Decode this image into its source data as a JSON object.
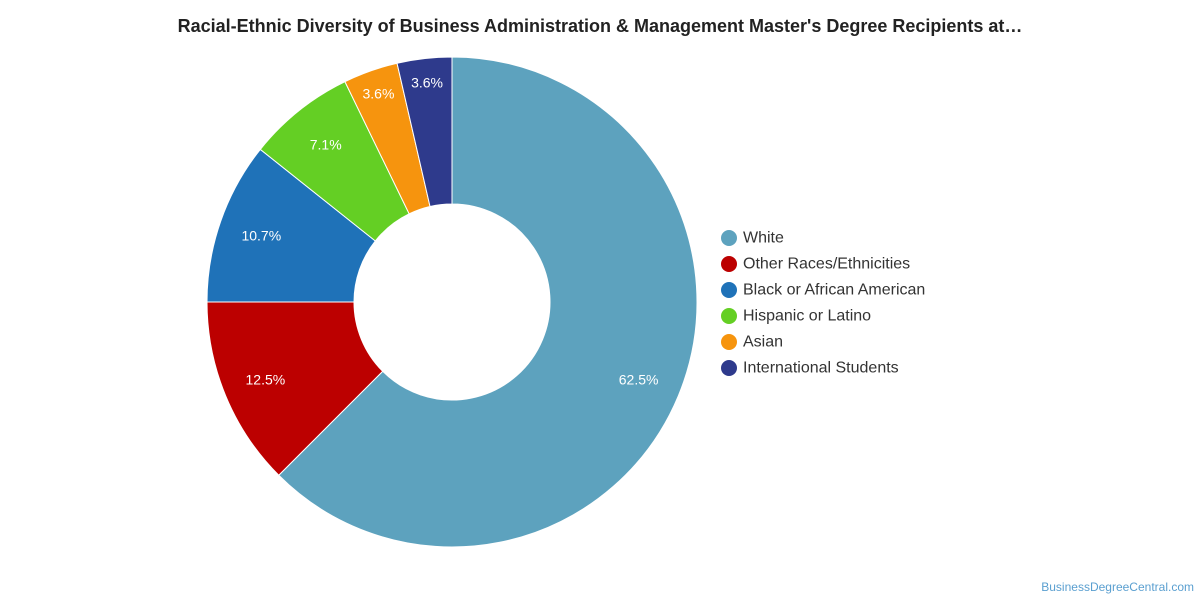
{
  "chart_data": {
    "type": "pie",
    "variant": "donut",
    "title": "Racial-Ethnic Diversity of Business Administration & Management Master's Degree Recipients at…",
    "legend_position": "right",
    "slices": [
      {
        "label": "White",
        "value": 62.5,
        "display": "62.5%",
        "color": "#5da2be"
      },
      {
        "label": "Other Races/Ethnicities",
        "value": 12.5,
        "display": "12.5%",
        "color": "#bc0000"
      },
      {
        "label": "Black or African American",
        "value": 10.7,
        "display": "10.7%",
        "color": "#1f72b8"
      },
      {
        "label": "Hispanic or Latino",
        "value": 7.1,
        "display": "7.1%",
        "color": "#64cf24"
      },
      {
        "label": "Asian",
        "value": 3.6,
        "display": "3.6%",
        "color": "#f6940e"
      },
      {
        "label": "International Students",
        "value": 3.6,
        "display": "3.6%",
        "color": "#2e3a8c"
      }
    ]
  },
  "source": "BusinessDegreeCentral.com"
}
